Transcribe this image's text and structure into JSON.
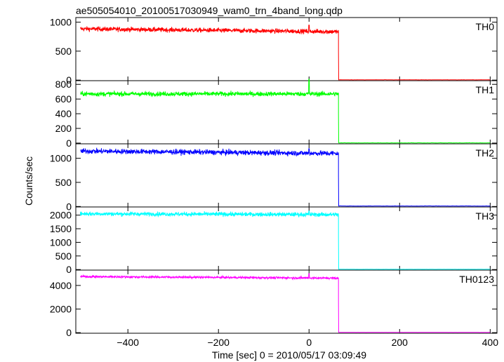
{
  "chart_data": {
    "type": "line",
    "title": "ae505054010_20100517030949_wam0_trn_4band_long.qdp",
    "xlabel": "Time [sec] 0 = 2010/05/17 03:09:49",
    "ylabel": "Counts/sec",
    "xlim": [
      -515,
      415
    ],
    "xticks": [
      -400,
      -200,
      0,
      200,
      400
    ],
    "x_start": -505,
    "x_cutoff": 65,
    "x_end": 400,
    "panels": [
      {
        "name": "TH0",
        "color": "#ff0000",
        "ylim": [
          -10,
          1080
        ],
        "yticks": [
          0,
          500,
          1000
        ],
        "level_start": 885,
        "level_end": 835,
        "noise": 28,
        "spike": 950,
        "after": 5
      },
      {
        "name": "TH1",
        "color": "#00ff00",
        "ylim": [
          -10,
          850
        ],
        "yticks": [
          0,
          200,
          400,
          600,
          800
        ],
        "level_start": 670,
        "level_end": 670,
        "noise": 22,
        "spike": 870,
        "after": 3
      },
      {
        "name": "TH2",
        "color": "#0000ff",
        "ylim": [
          -10,
          1300
        ],
        "yticks": [
          0,
          500,
          1000
        ],
        "level_start": 1150,
        "level_end": 1100,
        "noise": 38,
        "spike": 1200,
        "after": 10
      },
      {
        "name": "TH3",
        "color": "#00ffff",
        "ylim": [
          -20,
          2300
        ],
        "yticks": [
          0,
          500,
          1000,
          1500,
          2000
        ],
        "level_start": 2050,
        "level_end": 2020,
        "noise": 55,
        "spike": 2150,
        "after": 10
      },
      {
        "name": "TH0123",
        "color": "#ff00ff",
        "ylim": [
          -50,
          5300
        ],
        "yticks": [
          0,
          2000,
          4000
        ],
        "level_start": 4750,
        "level_end": 4620,
        "noise": 65,
        "spike": 5000,
        "after": 20
      }
    ]
  }
}
